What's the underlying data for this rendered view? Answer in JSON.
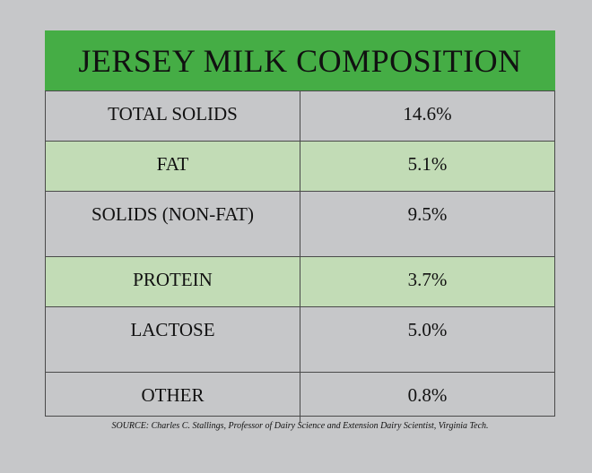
{
  "chart_data": {
    "type": "table",
    "title": "JERSEY MILK COMPOSITION",
    "columns": [
      "",
      ""
    ],
    "rows": [
      {
        "label": "TOTAL SOLIDS",
        "value": "14.6%",
        "shaded": false
      },
      {
        "label": "FAT",
        "value": "5.1%",
        "shaded": true
      },
      {
        "label": "SOLIDS (NON-FAT)",
        "value": "9.5%",
        "shaded": false
      },
      {
        "label": "PROTEIN",
        "value": "3.7%",
        "shaded": true
      },
      {
        "label": "LACTOSE",
        "value": "5.0%",
        "shaded": false
      },
      {
        "label": "OTHER",
        "value": "0.8%",
        "shaded": false
      }
    ],
    "source": "SOURCE: Charles C. Stallings, Professor of Dairy Science and Extension Dairy Scientist, Virginia Tech."
  },
  "colors": {
    "title_bg": "#45ad45",
    "shaded_row": "#c2dcb6",
    "background": "#c6c7c9",
    "border": "#4a4a4a"
  }
}
